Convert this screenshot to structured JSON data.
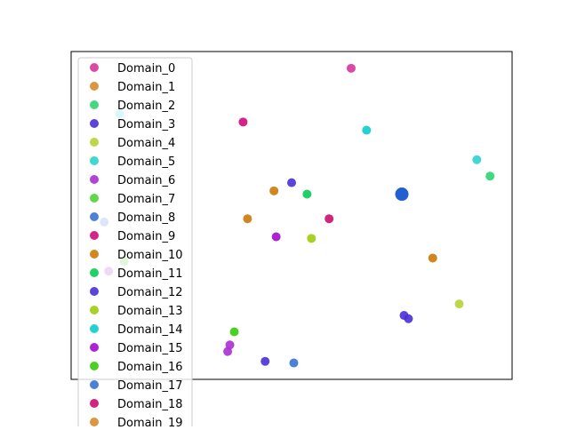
{
  "chart_data": {
    "type": "scatter",
    "title": "",
    "xlabel": "",
    "ylabel": "",
    "xlim": [
      0,
      100
    ],
    "ylim": [
      0,
      100
    ],
    "grid": false,
    "axes_ticks_visible": false,
    "legend": {
      "placement": "top-left",
      "overflows_plot": true
    },
    "series": [
      {
        "name": "Domain_0",
        "color": "#d6369a",
        "points": [
          [
            63.5,
            94.9
          ]
        ]
      },
      {
        "name": "Domain_1",
        "color": "#d98b2b",
        "points": []
      },
      {
        "name": "Domain_2",
        "color": "#2fd573",
        "points": [
          [
            95.0,
            62.0
          ]
        ]
      },
      {
        "name": "Domain_3",
        "color": "#4a2fd6",
        "points": [
          [
            50.0,
            60.0
          ]
        ]
      },
      {
        "name": "Domain_4",
        "color": "#b5d334",
        "points": [
          [
            5.0,
            67.0
          ],
          [
            88.0,
            23.0
          ]
        ]
      },
      {
        "name": "Domain_5",
        "color": "#2dd3cf",
        "points": [
          [
            11.0,
            81.0
          ],
          [
            92.0,
            67.0
          ]
        ]
      },
      {
        "name": "Domain_6",
        "color": "#ab2fd4",
        "points": [
          [
            8.5,
            33.0
          ],
          [
            35.5,
            8.5
          ],
          [
            36.0,
            10.5
          ]
        ]
      },
      {
        "name": "Domain_7",
        "color": "#52d336",
        "points": [
          [
            12.0,
            36.0
          ]
        ]
      },
      {
        "name": "Domain_8",
        "color": "#3a73d4",
        "points": [
          [
            7.5,
            48.0
          ]
        ]
      },
      {
        "name": "Domain_9",
        "color": "#cf0b7c",
        "points": [
          [
            39.0,
            78.5
          ]
        ]
      },
      {
        "name": "Domain_10",
        "color": "#cc7a08",
        "points": [
          [
            40.0,
            49.0
          ],
          [
            46.0,
            57.5
          ],
          [
            82.0,
            37.0
          ]
        ]
      },
      {
        "name": "Domain_11",
        "color": "#08cc59",
        "points": [
          [
            53.5,
            56.5
          ]
        ]
      },
      {
        "name": "Domain_12",
        "color": "#4a2fd6",
        "points": [
          [
            44.0,
            5.5
          ],
          [
            75.5,
            19.5
          ],
          [
            76.5,
            18.5
          ]
        ]
      },
      {
        "name": "Domain_13",
        "color": "#9ecc0c",
        "points": [
          [
            54.5,
            43.0
          ]
        ]
      },
      {
        "name": "Domain_14",
        "color": "#0ccccc",
        "points": [
          [
            67.0,
            76.0
          ]
        ]
      },
      {
        "name": "Domain_15",
        "color": "#a30ccc",
        "points": [
          [
            46.5,
            43.5
          ]
        ]
      },
      {
        "name": "Domain_16",
        "color": "#36cc0c",
        "points": [
          [
            37.0,
            14.5
          ]
        ]
      },
      {
        "name": "Domain_17",
        "color": "#3a73d4",
        "points": [
          [
            50.5,
            5.0
          ]
        ]
      },
      {
        "name": "Domain_18",
        "color": "#cc0c70",
        "points": [
          [
            58.5,
            49.0
          ]
        ]
      },
      {
        "name": "Domain_19",
        "color": "#d98b2b",
        "points": []
      },
      {
        "name": "",
        "color": "#0a4fcc",
        "points": [
          [
            75.0,
            56.5
          ]
        ]
      }
    ]
  }
}
